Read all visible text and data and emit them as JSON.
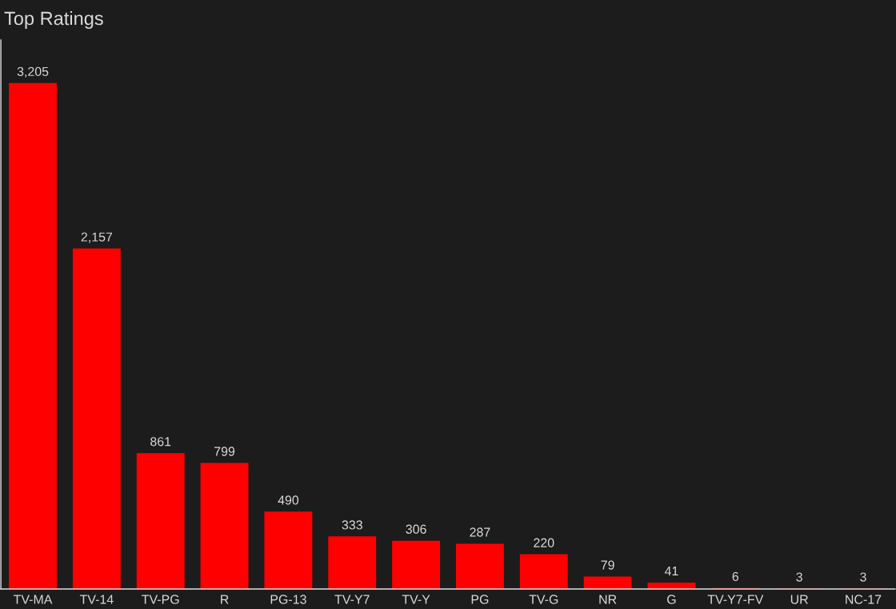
{
  "chart_data": {
    "type": "bar",
    "title": "Top Ratings",
    "categories": [
      "TV-MA",
      "TV-14",
      "TV-PG",
      "R",
      "PG-13",
      "TV-Y7",
      "TV-Y",
      "PG",
      "TV-G",
      "NR",
      "G",
      "TV-Y7-FV",
      "UR",
      "NC-17"
    ],
    "values": [
      3205,
      2157,
      861,
      799,
      490,
      333,
      306,
      287,
      220,
      79,
      41,
      6,
      3,
      3
    ],
    "value_labels": [
      "3,205",
      "2,157",
      "861",
      "799",
      "490",
      "333",
      "306",
      "287",
      "220",
      "79",
      "41",
      "6",
      "3",
      "3"
    ],
    "color": "#ff0000",
    "grid": false,
    "legend": false
  }
}
